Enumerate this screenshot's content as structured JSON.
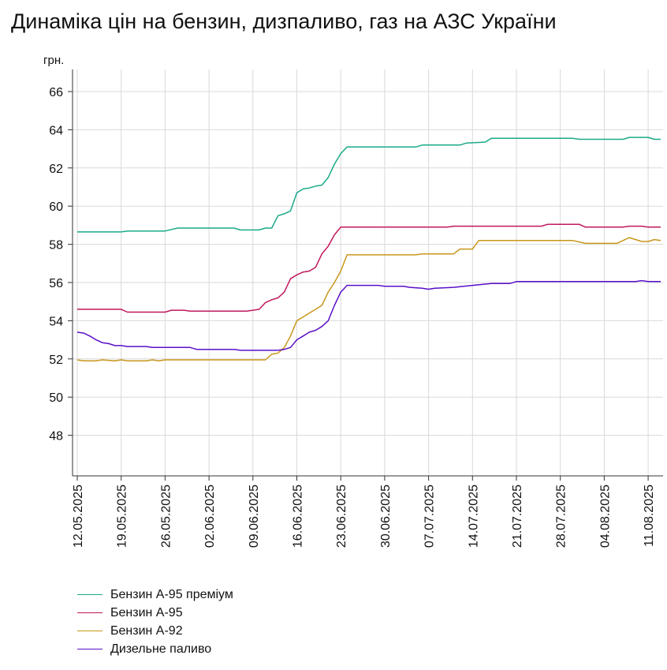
{
  "chart_data": {
    "type": "line",
    "title": "Динаміка цін на бензин, дизпаливо, газ на АЗС України",
    "ylabel": "грн.",
    "xlabel": "",
    "ylim": [
      46,
      66
    ],
    "yticks": [
      48,
      50,
      52,
      54,
      56,
      58,
      60,
      62,
      64,
      66
    ],
    "grid": true,
    "legend_position": "bottom-left",
    "x_start": "12.05.2025",
    "x_end": "13.08.2025",
    "x_ticks": [
      "12.05.2025",
      "19.05.2025",
      "26.05.2025",
      "02.06.2025",
      "09.06.2025",
      "16.06.2025",
      "23.06.2025",
      "30.06.2025",
      "07.07.2025",
      "14.07.2025",
      "21.07.2025",
      "28.07.2025",
      "04.08.2025",
      "11.08.2025"
    ],
    "series": [
      {
        "name": "Бензин А-95 преміум",
        "color": "#1aaa8a",
        "points": [
          [
            "12.05.2025",
            58.65
          ],
          [
            "19.05.2025",
            58.65
          ],
          [
            "20.05.2025",
            58.7
          ],
          [
            "26.05.2025",
            58.7
          ],
          [
            "28.05.2025",
            58.85
          ],
          [
            "06.06.2025",
            58.85
          ],
          [
            "07.06.2025",
            58.75
          ],
          [
            "10.06.2025",
            58.75
          ],
          [
            "11.06.2025",
            58.85
          ],
          [
            "12.06.2025",
            58.85
          ],
          [
            "13.06.2025",
            59.5
          ],
          [
            "14.06.2025",
            59.6
          ],
          [
            "15.06.2025",
            59.75
          ],
          [
            "16.06.2025",
            60.7
          ],
          [
            "17.06.2025",
            60.9
          ],
          [
            "18.06.2025",
            60.95
          ],
          [
            "19.06.2025",
            61.05
          ],
          [
            "20.06.2025",
            61.1
          ],
          [
            "21.06.2025",
            61.5
          ],
          [
            "22.06.2025",
            62.2
          ],
          [
            "23.06.2025",
            62.75
          ],
          [
            "24.06.2025",
            63.1
          ],
          [
            "05.07.2025",
            63.1
          ],
          [
            "06.07.2025",
            63.2
          ],
          [
            "12.07.2025",
            63.2
          ],
          [
            "13.07.2025",
            63.3
          ],
          [
            "16.07.2025",
            63.35
          ],
          [
            "17.07.2025",
            63.55
          ],
          [
            "30.07.2025",
            63.55
          ],
          [
            "31.07.2025",
            63.5
          ],
          [
            "07.08.2025",
            63.5
          ],
          [
            "08.08.2025",
            63.6
          ],
          [
            "11.08.2025",
            63.6
          ],
          [
            "12.08.2025",
            63.5
          ],
          [
            "13.08.2025",
            63.5
          ]
        ]
      },
      {
        "name": "Бензин А-95",
        "color": "#c0185c",
        "points": [
          [
            "12.05.2025",
            54.6
          ],
          [
            "19.05.2025",
            54.6
          ],
          [
            "20.05.2025",
            54.45
          ],
          [
            "26.05.2025",
            54.45
          ],
          [
            "27.05.2025",
            54.55
          ],
          [
            "29.05.2025",
            54.55
          ],
          [
            "30.05.2025",
            54.5
          ],
          [
            "08.06.2025",
            54.5
          ],
          [
            "09.06.2025",
            54.55
          ],
          [
            "10.06.2025",
            54.6
          ],
          [
            "11.06.2025",
            54.95
          ],
          [
            "12.06.2025",
            55.1
          ],
          [
            "13.06.2025",
            55.2
          ],
          [
            "14.06.2025",
            55.5
          ],
          [
            "15.06.2025",
            56.2
          ],
          [
            "16.06.2025",
            56.4
          ],
          [
            "17.06.2025",
            56.55
          ],
          [
            "18.06.2025",
            56.6
          ],
          [
            "19.06.2025",
            56.8
          ],
          [
            "20.06.2025",
            57.5
          ],
          [
            "21.06.2025",
            57.9
          ],
          [
            "22.06.2025",
            58.5
          ],
          [
            "23.06.2025",
            58.9
          ],
          [
            "10.07.2025",
            58.9
          ],
          [
            "11.07.2025",
            58.95
          ],
          [
            "25.07.2025",
            58.95
          ],
          [
            "26.07.2025",
            59.05
          ],
          [
            "31.07.2025",
            59.05
          ],
          [
            "01.08.2025",
            58.9
          ],
          [
            "07.08.2025",
            58.9
          ],
          [
            "08.08.2025",
            58.95
          ],
          [
            "10.08.2025",
            58.95
          ],
          [
            "11.08.2025",
            58.9
          ],
          [
            "13.08.2025",
            58.9
          ]
        ]
      },
      {
        "name": "Бензин А-92",
        "color": "#c8961a",
        "points": [
          [
            "12.05.2025",
            51.95
          ],
          [
            "13.05.2025",
            51.9
          ],
          [
            "15.05.2025",
            51.9
          ],
          [
            "16.05.2025",
            51.95
          ],
          [
            "18.05.2025",
            51.9
          ],
          [
            "19.05.2025",
            51.95
          ],
          [
            "20.05.2025",
            51.9
          ],
          [
            "23.05.2025",
            51.9
          ],
          [
            "24.05.2025",
            51.95
          ],
          [
            "25.05.2025",
            51.9
          ],
          [
            "26.05.2025",
            51.95
          ],
          [
            "11.06.2025",
            51.95
          ],
          [
            "12.06.2025",
            52.25
          ],
          [
            "13.06.2025",
            52.3
          ],
          [
            "14.06.2025",
            52.6
          ],
          [
            "15.06.2025",
            53.2
          ],
          [
            "16.06.2025",
            54.0
          ],
          [
            "17.06.2025",
            54.2
          ],
          [
            "18.06.2025",
            54.4
          ],
          [
            "19.06.2025",
            54.6
          ],
          [
            "20.06.2025",
            54.8
          ],
          [
            "21.06.2025",
            55.5
          ],
          [
            "22.06.2025",
            56.0
          ],
          [
            "23.06.2025",
            56.6
          ],
          [
            "24.06.2025",
            57.45
          ],
          [
            "05.07.2025",
            57.45
          ],
          [
            "06.07.2025",
            57.5
          ],
          [
            "11.07.2025",
            57.5
          ],
          [
            "12.07.2025",
            57.75
          ],
          [
            "14.07.2025",
            57.75
          ],
          [
            "15.07.2025",
            58.2
          ],
          [
            "30.07.2025",
            58.2
          ],
          [
            "01.08.2025",
            58.05
          ],
          [
            "06.08.2025",
            58.05
          ],
          [
            "08.08.2025",
            58.35
          ],
          [
            "09.08.2025",
            58.25
          ],
          [
            "10.08.2025",
            58.15
          ],
          [
            "11.08.2025",
            58.15
          ],
          [
            "12.08.2025",
            58.25
          ],
          [
            "13.08.2025",
            58.2
          ]
        ]
      },
      {
        "name": "Дизельне паливо",
        "color": "#5a0fc8",
        "points": [
          [
            "12.05.2025",
            53.4
          ],
          [
            "13.05.2025",
            53.35
          ],
          [
            "14.05.2025",
            53.2
          ],
          [
            "15.05.2025",
            53.0
          ],
          [
            "16.05.2025",
            52.85
          ],
          [
            "17.05.2025",
            52.8
          ],
          [
            "18.05.2025",
            52.7
          ],
          [
            "19.05.2025",
            52.7
          ],
          [
            "20.05.2025",
            52.65
          ],
          [
            "23.05.2025",
            52.65
          ],
          [
            "24.05.2025",
            52.6
          ],
          [
            "30.05.2025",
            52.6
          ],
          [
            "31.05.2025",
            52.5
          ],
          [
            "06.06.2025",
            52.5
          ],
          [
            "07.06.2025",
            52.45
          ],
          [
            "13.06.2025",
            52.45
          ],
          [
            "14.06.2025",
            52.5
          ],
          [
            "15.06.2025",
            52.6
          ],
          [
            "16.06.2025",
            53.0
          ],
          [
            "17.06.2025",
            53.2
          ],
          [
            "18.06.2025",
            53.4
          ],
          [
            "19.06.2025",
            53.5
          ],
          [
            "20.06.2025",
            53.7
          ],
          [
            "21.06.2025",
            54.0
          ],
          [
            "22.06.2025",
            54.8
          ],
          [
            "23.06.2025",
            55.5
          ],
          [
            "24.06.2025",
            55.85
          ],
          [
            "29.06.2025",
            55.85
          ],
          [
            "30.06.2025",
            55.8
          ],
          [
            "03.07.2025",
            55.8
          ],
          [
            "04.07.2025",
            55.75
          ],
          [
            "06.07.2025",
            55.7
          ],
          [
            "07.07.2025",
            55.65
          ],
          [
            "08.07.2025",
            55.7
          ],
          [
            "11.07.2025",
            55.75
          ],
          [
            "14.07.2025",
            55.85
          ],
          [
            "17.07.2025",
            55.95
          ],
          [
            "20.07.2025",
            55.95
          ],
          [
            "21.07.2025",
            56.05
          ],
          [
            "09.08.2025",
            56.05
          ],
          [
            "10.08.2025",
            56.1
          ],
          [
            "11.08.2025",
            56.05
          ],
          [
            "13.08.2025",
            56.05
          ]
        ]
      }
    ]
  }
}
